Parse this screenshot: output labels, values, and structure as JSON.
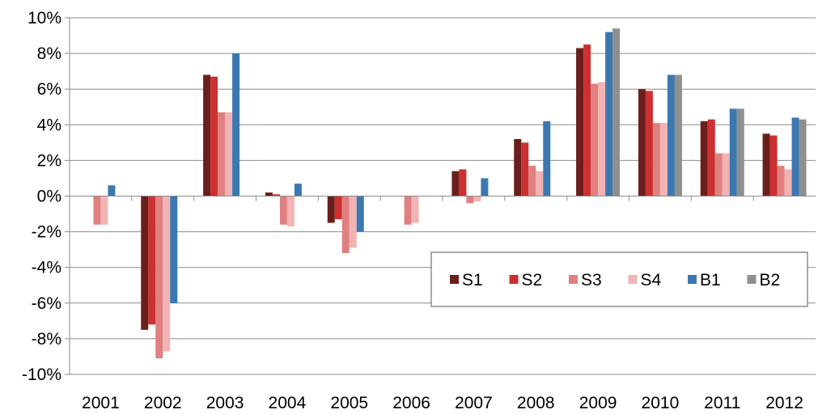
{
  "chart_data": {
    "type": "bar",
    "title": "",
    "xlabel": "",
    "ylabel": "",
    "ylim": [
      -10,
      10
    ],
    "y_ticks": [
      10,
      8,
      6,
      4,
      2,
      0,
      -2,
      -4,
      -6,
      -8,
      -10
    ],
    "y_tick_format": "percent",
    "grid": {
      "horizontal": true,
      "vertical": false
    },
    "legend_position": "lower-right",
    "categories": [
      "2001",
      "2002",
      "2003",
      "2004",
      "2005",
      "2006",
      "2007",
      "2008",
      "2009",
      "2010",
      "2011",
      "2012"
    ],
    "series": [
      {
        "name": "S1",
        "color": "#6b1f1c",
        "values": [
          0.0,
          -7.5,
          6.8,
          0.2,
          -1.5,
          0.0,
          1.4,
          3.2,
          8.3,
          6.0,
          4.2,
          3.5
        ]
      },
      {
        "name": "S2",
        "color": "#cc3030",
        "values": [
          0.0,
          -7.2,
          6.7,
          0.1,
          -1.3,
          0.0,
          1.5,
          3.0,
          8.5,
          5.9,
          4.3,
          3.4
        ]
      },
      {
        "name": "S3",
        "color": "#e08080",
        "values": [
          -1.6,
          -9.1,
          4.7,
          -1.6,
          -3.2,
          -1.6,
          -0.4,
          1.7,
          6.3,
          4.1,
          2.4,
          1.7
        ]
      },
      {
        "name": "S4",
        "color": "#f1b3b3",
        "values": [
          -1.6,
          -8.7,
          4.7,
          -1.7,
          -2.9,
          -1.5,
          -0.3,
          1.4,
          6.4,
          4.1,
          2.4,
          1.5
        ]
      },
      {
        "name": "B1",
        "color": "#3b78b0",
        "values": [
          0.6,
          -6.0,
          8.0,
          0.7,
          -2.0,
          0.0,
          1.0,
          4.2,
          9.2,
          6.8,
          4.9,
          4.4
        ]
      },
      {
        "name": "B2",
        "color": "#8f8f8f",
        "values": [
          0.0,
          0.0,
          0.0,
          0.0,
          0.0,
          0.0,
          0.0,
          0.0,
          9.4,
          6.8,
          4.9,
          4.3
        ]
      }
    ]
  }
}
